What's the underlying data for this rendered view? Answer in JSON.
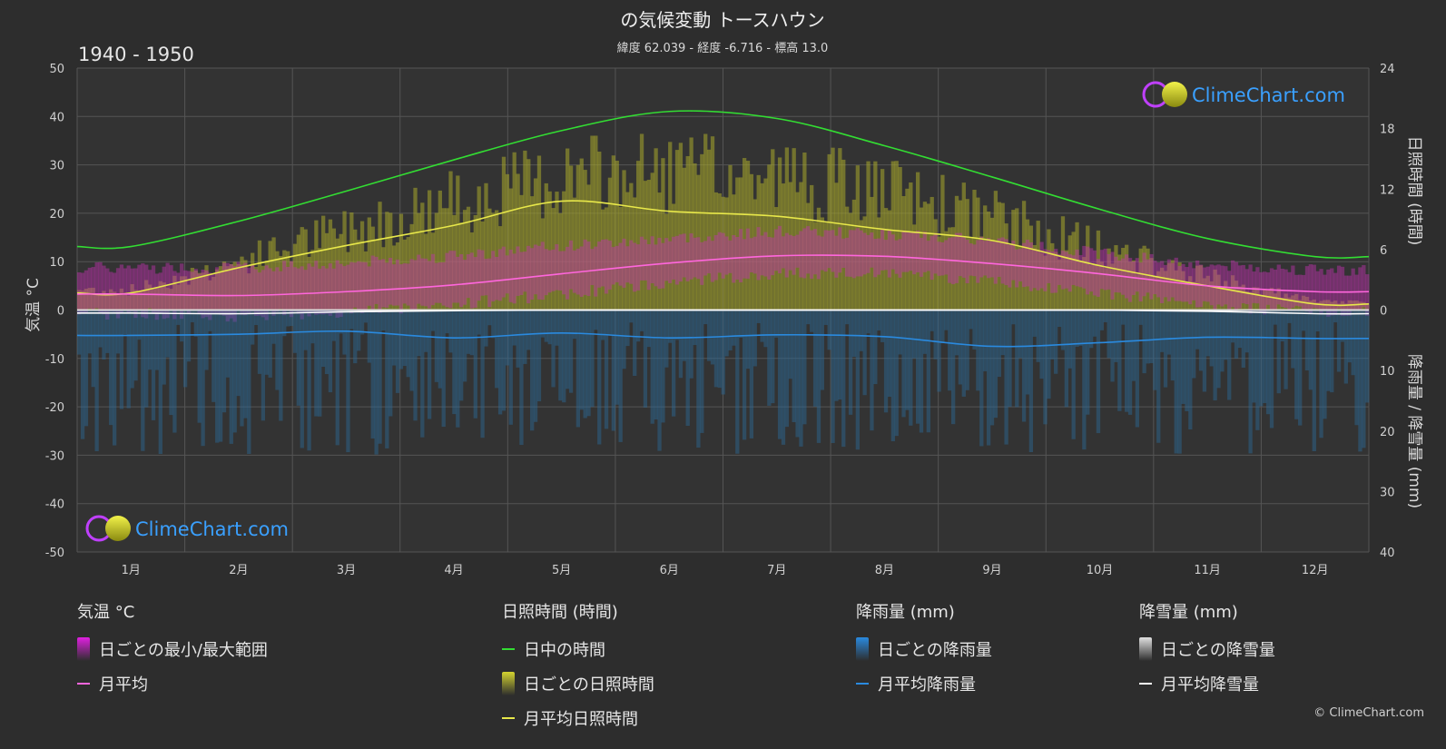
{
  "header": {
    "title": "の気候変動 トースハウン",
    "subtitle": "緯度 62.039 - 経度 -6.716 - 標高 13.0",
    "period": "1940 - 1950"
  },
  "logo_text": "ClimeChart.com",
  "copyright": "© ClimeChart.com",
  "chart_data": {
    "type": "line",
    "categories": [
      "1月",
      "2月",
      "3月",
      "4月",
      "5月",
      "6月",
      "7月",
      "8月",
      "9月",
      "10月",
      "11月",
      "12月"
    ],
    "y_left": {
      "label": "気温 °C",
      "range": [
        -50,
        50
      ],
      "ticks": [
        50,
        40,
        30,
        20,
        10,
        0,
        -10,
        -20,
        -30,
        -40,
        -50
      ]
    },
    "y_right_top": {
      "label": "日照時間 (時間)",
      "range": [
        0,
        24
      ],
      "ticks": [
        24,
        18,
        12,
        6,
        0
      ]
    },
    "y_right_bottom": {
      "label": "降雨量 / 降雪量 (mm)",
      "range": [
        0,
        40
      ],
      "ticks": [
        10,
        20,
        30,
        40
      ]
    },
    "series": [
      {
        "name": "日中の時間",
        "axis": "sun",
        "color": "#33dd33",
        "values": [
          6.3,
          8.8,
          11.8,
          14.9,
          17.8,
          19.7,
          19.0,
          16.3,
          13.2,
          10.0,
          7.1,
          5.3
        ]
      },
      {
        "name": "月平均日照時間",
        "axis": "sun",
        "color": "#e8e84a",
        "values": [
          1.7,
          4.2,
          6.4,
          8.4,
          10.8,
          9.8,
          9.3,
          8.0,
          6.9,
          4.4,
          2.4,
          0.6
        ]
      },
      {
        "name": "月平均",
        "axis": "temp",
        "color": "#ff66dd",
        "values": [
          3.3,
          3.0,
          3.8,
          5.2,
          7.5,
          9.7,
          11.2,
          11.1,
          9.6,
          7.5,
          5.0,
          3.8
        ]
      },
      {
        "name": "月平均降雨量",
        "axis": "precip",
        "color": "#2a8adf",
        "values": [
          4.2,
          4.0,
          3.5,
          4.6,
          3.8,
          4.6,
          4.1,
          4.4,
          6.0,
          5.4,
          4.5,
          4.7
        ]
      },
      {
        "name": "月平均降雪量",
        "axis": "precip",
        "color": "#ffffff",
        "values": [
          0.5,
          0.6,
          0.3,
          0.1,
          0.0,
          0.0,
          0.0,
          0.0,
          0.0,
          0.0,
          0.2,
          0.6
        ]
      }
    ],
    "daily_temp_range": {
      "name": "日ごとの最小/最大範囲",
      "min": [
        0.5,
        0.0,
        0.8,
        2.5,
        4.5,
        7.0,
        8.8,
        8.8,
        7.0,
        4.8,
        2.0,
        0.8
      ],
      "max": [
        7.5,
        7.5,
        8.5,
        10.0,
        12.0,
        13.5,
        15.0,
        14.5,
        13.0,
        10.5,
        8.0,
        7.0
      ]
    },
    "daily_sun_max": [
      2.5,
      6.0,
      10.0,
      13.5,
      16.5,
      17.0,
      16.5,
      14.5,
      11.5,
      7.5,
      4.0,
      1.0
    ],
    "grid": true
  },
  "legend": {
    "groups": [
      {
        "title": "気温 °C",
        "items": [
          {
            "type": "box",
            "label": "日ごとの最小/最大範囲",
            "color": "#e020e0"
          },
          {
            "type": "line",
            "label": "月平均",
            "color": "#ff66dd"
          }
        ]
      },
      {
        "title": "日照時間 (時間)",
        "items": [
          {
            "type": "line",
            "label": "日中の時間",
            "color": "#33dd33"
          },
          {
            "type": "box",
            "label": "日ごとの日照時間",
            "color": "#d4d430"
          },
          {
            "type": "line",
            "label": "月平均日照時間",
            "color": "#e8e84a"
          }
        ]
      },
      {
        "title": "降雨量 (mm)",
        "items": [
          {
            "type": "box",
            "label": "日ごとの降雨量",
            "color": "#2a8adf"
          },
          {
            "type": "line",
            "label": "月平均降雨量",
            "color": "#2a8adf"
          }
        ]
      },
      {
        "title": "降雪量 (mm)",
        "items": [
          {
            "type": "box",
            "label": "日ごとの降雪量",
            "color": "#e0e0e0"
          },
          {
            "type": "line",
            "label": "月平均降雪量",
            "color": "#ffffff"
          }
        ]
      }
    ]
  }
}
